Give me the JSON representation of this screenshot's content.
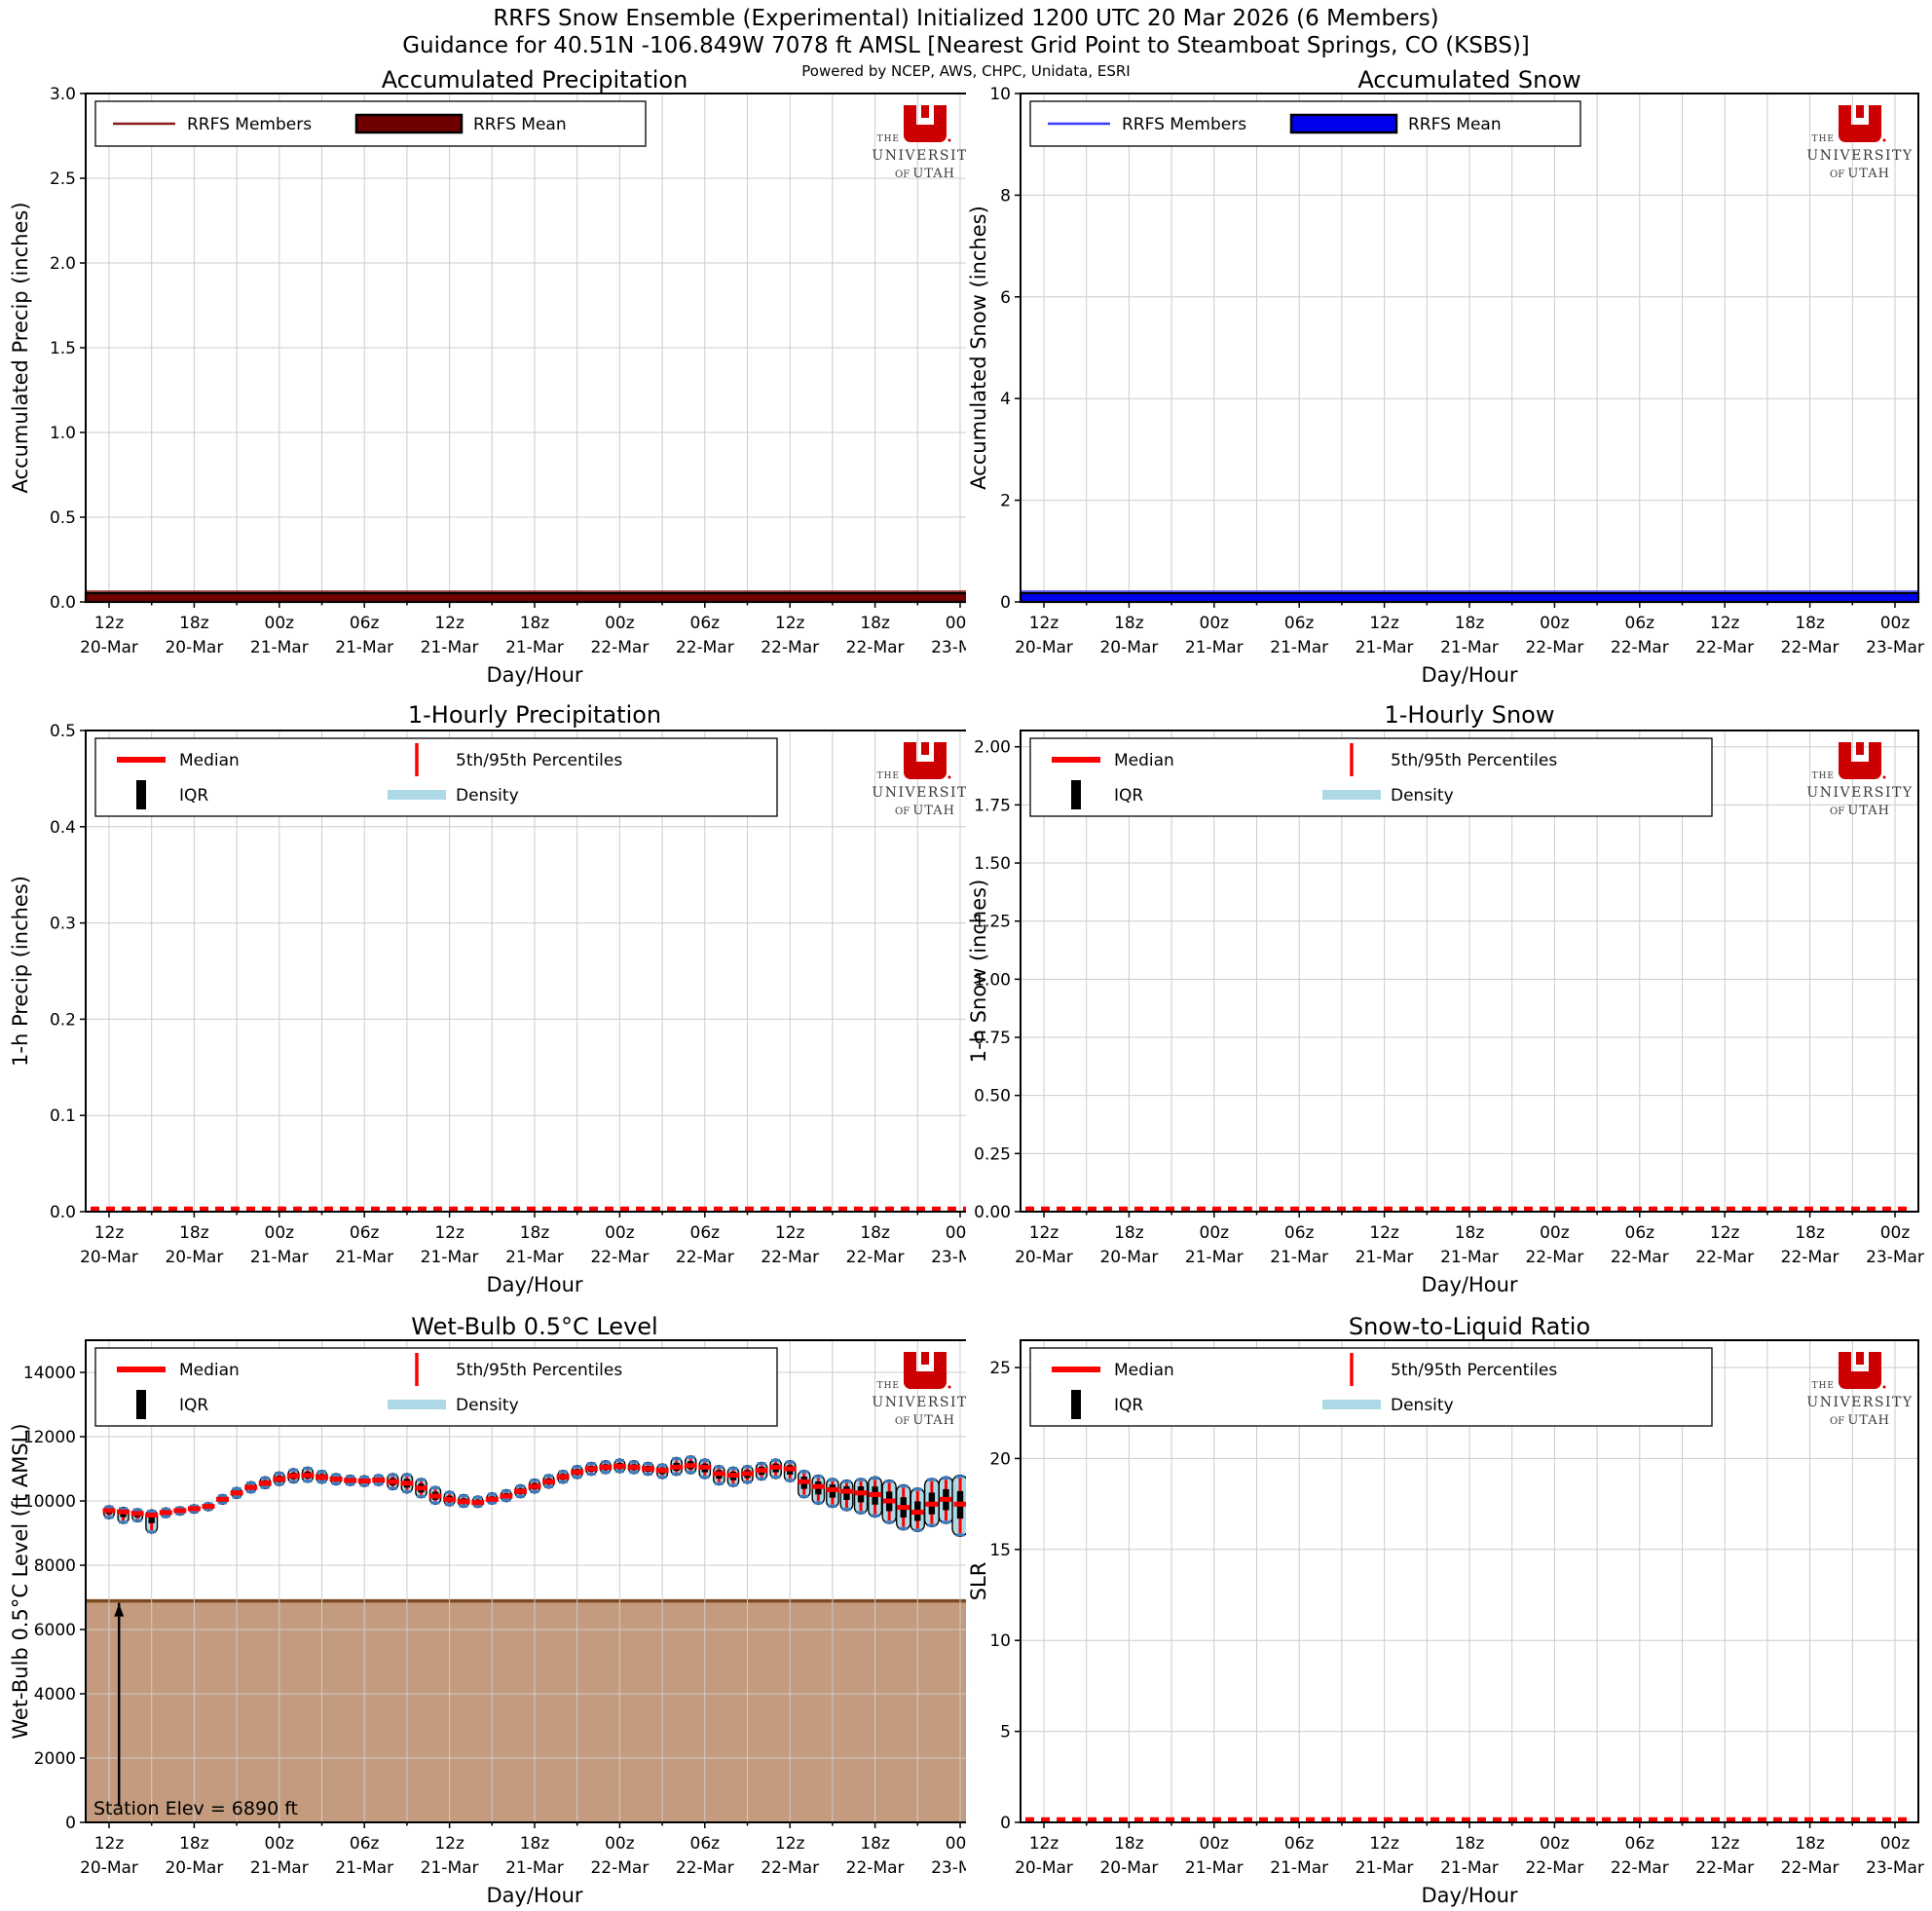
{
  "header": {
    "title": "RRFS Snow Ensemble (Experimental) Initialized 1200 UTC 20 Mar 2026 (6 Members)",
    "subtitle": "Guidance for 40.51N -106.849W 7078 ft AMSL [Nearest Grid Point to Steamboat Springs, CO (KSBS)]",
    "powered_by": "Powered by NCEP, AWS, CHPC, Unidata, ESRI"
  },
  "logo": {
    "the": "THE",
    "university": "UNIVERSITY",
    "of": "OF",
    "utah": "UTAH"
  },
  "colors": {
    "member_red": "#8B1A1A",
    "mean_red": "#700000",
    "member_blue": "#3B3BFF",
    "mean_blue": "#0000EE",
    "median": "#FF0000",
    "density": "#ADD8E6",
    "iqr": "#000000",
    "cap_blue": "#3A7CBF",
    "grid": "#CCCCCC",
    "spine": "#000000",
    "terrain_fill": "#C49B7E",
    "terrain_edge": "#7C4A21",
    "logo_red": "#CC0000",
    "logo_text": "#3A3A3A"
  },
  "x_axis": {
    "label": "Day/Hour",
    "span_hours": 60,
    "major_step": 6,
    "minor_step": 3,
    "hours": [
      "12z",
      "18z",
      "00z",
      "06z",
      "12z",
      "18z",
      "00z",
      "06z",
      "12z",
      "18z",
      "00z"
    ],
    "days": [
      "20-Mar",
      "20-Mar",
      "21-Mar",
      "21-Mar",
      "21-Mar",
      "21-Mar",
      "22-Mar",
      "22-Mar",
      "22-Mar",
      "22-Mar",
      "23-Mar"
    ]
  },
  "chart_data": {
    "panels": [
      {
        "key": "accumulated-precipitation",
        "type": "ensemble_flat",
        "title": "Accumulated Precipitation",
        "ylabel": "Accumulated Precip (inches)",
        "axis_max": 3.0,
        "ytick_vals": [
          0,
          0.5,
          1,
          1.5,
          2,
          2.5,
          3
        ],
        "ytick_labels": [
          "0.0",
          "0.5",
          "1.0",
          "1.5",
          "2.0",
          "2.5",
          "3.0"
        ],
        "legend": [
          "RRFS Members",
          "RRFS Mean"
        ],
        "line_color_key": "member_red",
        "fill_color_key": "mean_red",
        "flat_value": 0.0
      },
      {
        "key": "accumulated-snow",
        "type": "ensemble_flat",
        "title": "Accumulated Snow",
        "ylabel": "Accumulated Snow (inches)",
        "axis_max": 10,
        "ytick_vals": [
          0,
          2,
          4,
          6,
          8,
          10
        ],
        "ytick_labels": [
          "0",
          "2",
          "4",
          "6",
          "8",
          "10"
        ],
        "legend": [
          "RRFS Members",
          "RRFS Mean"
        ],
        "line_color_key": "member_blue",
        "fill_color_key": "mean_blue",
        "flat_value": 0.0
      },
      {
        "key": "hourly-precipitation",
        "type": "stats_flat",
        "title": "1-Hourly Precipitation",
        "ylabel": "1-h Precip (inches)",
        "axis_max": 0.5,
        "ytick_vals": [
          0,
          0.1,
          0.2,
          0.3,
          0.4,
          0.5
        ],
        "ytick_labels": [
          "0.0",
          "0.1",
          "0.2",
          "0.3",
          "0.4",
          "0.5"
        ],
        "legend": [
          "Median",
          "5th/95th Percentiles",
          "IQR",
          "Density"
        ],
        "median_value": 0.0
      },
      {
        "key": "hourly-snow",
        "type": "stats_flat",
        "title": "1-Hourly Snow",
        "ylabel": "1-h Snow (inches)",
        "axis_max": 2.07,
        "ytick_vals": [
          0,
          0.25,
          0.5,
          0.75,
          1,
          1.25,
          1.5,
          1.75,
          2
        ],
        "ytick_labels": [
          "0.00",
          "0.25",
          "0.50",
          "0.75",
          "1.00",
          "1.25",
          "1.50",
          "1.75",
          "2.00"
        ],
        "legend": [
          "Median",
          "5th/95th Percentiles",
          "IQR",
          "Density"
        ],
        "median_value": 0.0
      },
      {
        "key": "wet-bulb-level",
        "type": "violin",
        "title": "Wet-Bulb 0.5°C Level",
        "ylabel": "Wet-Bulb 0.5°C Level (ft AMSL)",
        "axis_max": 15000,
        "ytick_vals": [
          0,
          2000,
          4000,
          6000,
          8000,
          10000,
          12000,
          14000
        ],
        "ytick_labels": [
          "0",
          "2000",
          "4000",
          "6000",
          "8000",
          "10000",
          "12000",
          "14000"
        ],
        "legend": [
          "Median",
          "5th/95th Percentiles",
          "IQR",
          "Density"
        ],
        "station_elev": 6890,
        "annotation": "Station Elev = 6890 ft",
        "series": {
          "median": [
            9700,
            9660,
            9610,
            9560,
            9640,
            9700,
            9760,
            9830,
            10050,
            10250,
            10420,
            10550,
            10680,
            10780,
            10800,
            10740,
            10680,
            10640,
            10620,
            10650,
            10600,
            10550,
            10400,
            10150,
            10050,
            9980,
            9950,
            10050,
            10150,
            10300,
            10450,
            10600,
            10750,
            10900,
            11000,
            11050,
            11080,
            11050,
            11000,
            10950,
            11050,
            11100,
            11050,
            10850,
            10800,
            10850,
            10950,
            11050,
            11000,
            10600,
            10450,
            10350,
            10300,
            10250,
            10200,
            10000,
            9800,
            9650,
            9900,
            10050,
            9900
          ],
          "p5": [
            9450,
            9300,
            9350,
            9000,
            9480,
            9560,
            9620,
            9700,
            9900,
            10080,
            10250,
            10380,
            10480,
            10560,
            10580,
            10550,
            10500,
            10480,
            10450,
            10480,
            10350,
            10250,
            10100,
            9900,
            9850,
            9800,
            9800,
            9900,
            9980,
            10100,
            10250,
            10400,
            10550,
            10700,
            10800,
            10850,
            10880,
            10850,
            10800,
            10700,
            10800,
            10850,
            10700,
            10500,
            10450,
            10550,
            10650,
            10700,
            10600,
            10100,
            9900,
            9800,
            9700,
            9600,
            9500,
            9300,
            9100,
            9050,
            9200,
            9300,
            8900
          ],
          "p95": [
            9850,
            9800,
            9760,
            9720,
            9780,
            9820,
            9880,
            9950,
            10200,
            10420,
            10600,
            10750,
            10900,
            11000,
            11050,
            10950,
            10850,
            10800,
            10780,
            10820,
            10850,
            10850,
            10700,
            10450,
            10300,
            10200,
            10150,
            10250,
            10350,
            10500,
            10680,
            10820,
            10950,
            11100,
            11200,
            11250,
            11300,
            11250,
            11200,
            11150,
            11350,
            11400,
            11300,
            11100,
            11050,
            11100,
            11200,
            11300,
            11250,
            10950,
            10800,
            10700,
            10650,
            10700,
            10750,
            10650,
            10500,
            10400,
            10700,
            10750,
            10800
          ]
        }
      },
      {
        "key": "snow-to-liquid-ratio",
        "type": "stats_flat",
        "title": "Snow-to-Liquid Ratio",
        "ylabel": "SLR",
        "axis_max": 26.5,
        "ytick_vals": [
          0,
          5,
          10,
          15,
          20,
          25
        ],
        "ytick_labels": [
          "0",
          "5",
          "10",
          "15",
          "20",
          "25"
        ],
        "legend": [
          "Median",
          "5th/95th Percentiles",
          "IQR",
          "Density"
        ],
        "median_value": 0.0
      }
    ]
  }
}
